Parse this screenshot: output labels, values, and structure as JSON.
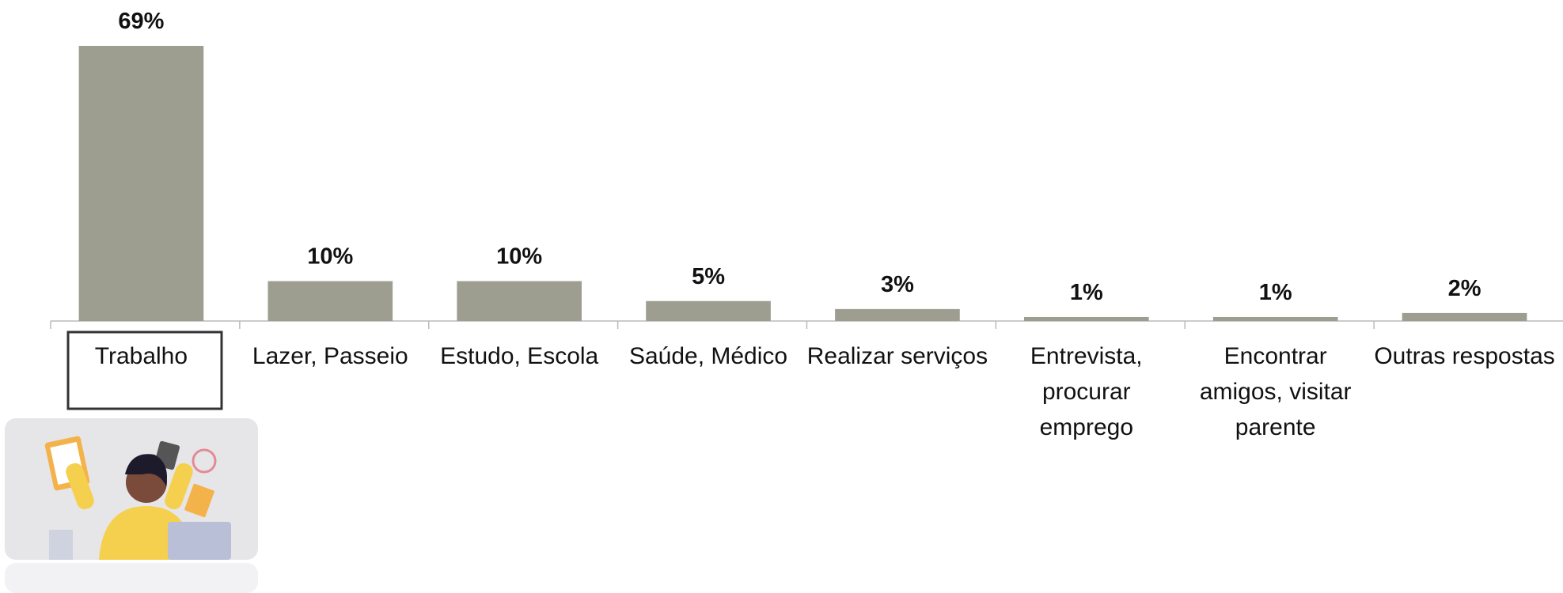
{
  "chart_data": {
    "type": "bar",
    "categories": [
      "Trabalho",
      "Lazer, Passeio",
      "Estudo, Escola",
      "Saúde, Médico",
      "Realizar serviços",
      "Entrevista, procurar emprego",
      "Encontrar amigos, visitar parente",
      "Outras respostas"
    ],
    "values": [
      69,
      10,
      10,
      5,
      3,
      1,
      1,
      2
    ],
    "value_labels": [
      "69%",
      "10%",
      "10%",
      "5%",
      "3%",
      "1%",
      "1%",
      "2%"
    ],
    "color": "#9e9e90"
  }
}
